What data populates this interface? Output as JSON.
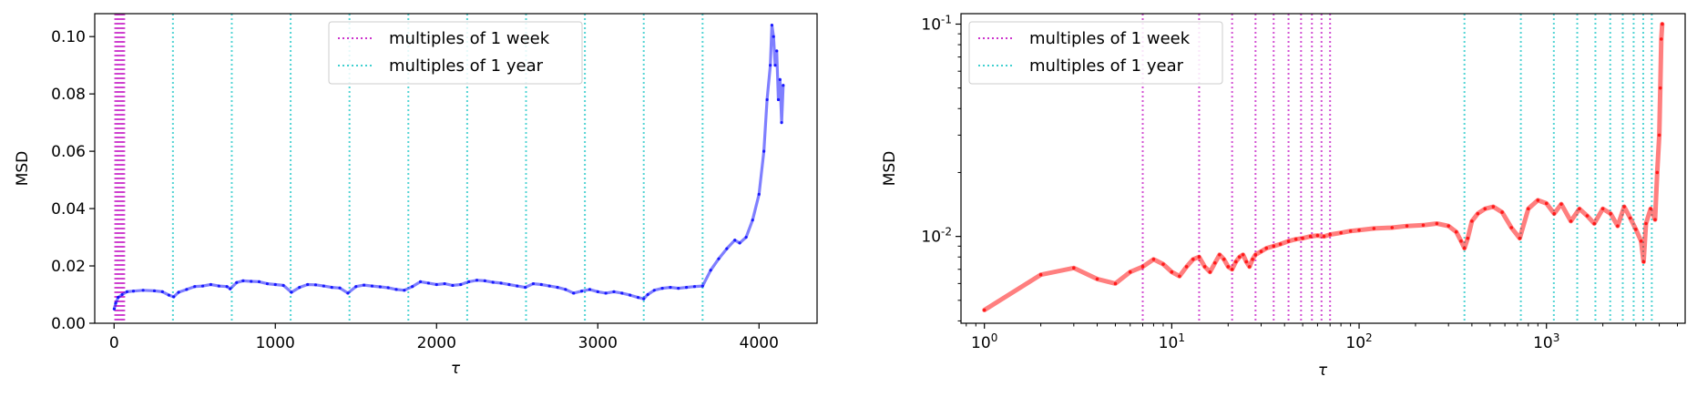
{
  "chart_data": [
    {
      "type": "line",
      "xlabel": "τ",
      "ylabel": "MSD",
      "xlim": [
        -120,
        4360
      ],
      "ylim": [
        0.0,
        0.108
      ],
      "x_ticks": [
        0,
        1000,
        2000,
        3000,
        4000
      ],
      "x_tick_labels": [
        "0",
        "1000",
        "2000",
        "3000",
        "4000"
      ],
      "y_ticks": [
        0.0,
        0.02,
        0.04,
        0.06,
        0.08,
        0.1
      ],
      "y_tick_labels": [
        "0.00",
        "0.02",
        "0.04",
        "0.06",
        "0.08",
        "0.10"
      ],
      "grid": false,
      "legend_position": "top-center",
      "legend": [
        "multiples of 1 week",
        "multiples of 1 year"
      ],
      "week_color": "#cc33cc",
      "year_color": "#40d0d0",
      "week_lines_x": [
        7,
        14,
        21,
        28,
        35,
        42,
        49,
        56,
        63
      ],
      "year_lines_x": [
        365,
        730,
        1095,
        1460,
        1825,
        2190,
        2555,
        2920,
        3285,
        3650
      ],
      "series": [
        {
          "color": "#0000ff",
          "x": [
            1,
            10,
            25,
            50,
            80,
            120,
            180,
            250,
            300,
            340,
            370,
            400,
            450,
            500,
            550,
            600,
            650,
            700,
            720,
            760,
            800,
            850,
            900,
            950,
            1000,
            1050,
            1100,
            1150,
            1200,
            1250,
            1300,
            1350,
            1400,
            1450,
            1500,
            1550,
            1600,
            1650,
            1700,
            1750,
            1800,
            1850,
            1900,
            1950,
            2000,
            2050,
            2100,
            2150,
            2200,
            2250,
            2300,
            2350,
            2400,
            2450,
            2500,
            2550,
            2600,
            2650,
            2700,
            2750,
            2800,
            2850,
            2900,
            2950,
            3000,
            3050,
            3100,
            3150,
            3200,
            3250,
            3285,
            3310,
            3350,
            3400,
            3450,
            3500,
            3550,
            3600,
            3650,
            3700,
            3750,
            3800,
            3850,
            3880,
            3920,
            3960,
            4000,
            4030,
            4050,
            4070,
            4080,
            4090,
            4100,
            4110,
            4120,
            4130,
            4140,
            4150
          ],
          "y": [
            0.005,
            0.007,
            0.009,
            0.01,
            0.011,
            0.0112,
            0.0115,
            0.0113,
            0.011,
            0.0098,
            0.0092,
            0.0108,
            0.0118,
            0.0128,
            0.013,
            0.0135,
            0.013,
            0.0128,
            0.012,
            0.0142,
            0.0148,
            0.0146,
            0.0145,
            0.0138,
            0.0135,
            0.0132,
            0.0108,
            0.0125,
            0.0135,
            0.0134,
            0.013,
            0.0125,
            0.0123,
            0.0105,
            0.0128,
            0.0133,
            0.013,
            0.0127,
            0.0124,
            0.0118,
            0.0115,
            0.0128,
            0.0145,
            0.014,
            0.0135,
            0.0138,
            0.0132,
            0.0135,
            0.0145,
            0.015,
            0.0148,
            0.0143,
            0.014,
            0.0135,
            0.013,
            0.0125,
            0.0138,
            0.0135,
            0.013,
            0.0125,
            0.0118,
            0.0105,
            0.0112,
            0.0118,
            0.011,
            0.0105,
            0.011,
            0.0105,
            0.0098,
            0.009,
            0.0085,
            0.01,
            0.0115,
            0.0122,
            0.0125,
            0.0122,
            0.0125,
            0.0128,
            0.013,
            0.0185,
            0.0225,
            0.026,
            0.029,
            0.028,
            0.03,
            0.036,
            0.045,
            0.06,
            0.078,
            0.09,
            0.104,
            0.1,
            0.09,
            0.095,
            0.078,
            0.085,
            0.07,
            0.083
          ]
        }
      ]
    },
    {
      "type": "line",
      "xscale": "log",
      "yscale": "log",
      "xlabel": "τ",
      "ylabel": "MSD",
      "xlim": [
        0.75,
        5500
      ],
      "ylim": [
        0.0039,
        0.112
      ],
      "x_ticks": [
        1,
        10,
        100,
        1000
      ],
      "x_tick_labels": [
        "10^0",
        "10^1",
        "10^2",
        "10^3"
      ],
      "y_ticks": [
        0.01,
        0.1
      ],
      "y_tick_labels": [
        "10^-2",
        "10^-1"
      ],
      "grid": false,
      "legend_position": "top-left",
      "legend": [
        "multiples of 1 week",
        "multiples of 1 year"
      ],
      "week_color": "#cc33cc",
      "year_color": "#40d0d0",
      "week_lines_x": [
        7,
        14,
        21,
        28,
        35,
        42,
        49,
        56,
        63,
        70
      ],
      "year_lines_x": [
        365,
        730,
        1095,
        1460,
        1825,
        2190,
        2555,
        2920,
        3285,
        3650
      ],
      "series": [
        {
          "color": "#ff0000",
          "x": [
            1,
            2,
            3,
            4,
            5,
            6,
            7,
            8,
            9,
            10,
            11,
            12,
            13,
            14,
            15,
            16,
            17,
            18,
            19,
            20,
            21,
            22,
            23,
            24,
            25,
            26,
            27,
            28,
            30,
            32,
            35,
            38,
            42,
            46,
            50,
            55,
            60,
            65,
            70,
            80,
            90,
            100,
            120,
            150,
            180,
            220,
            260,
            300,
            330,
            350,
            365,
            380,
            400,
            430,
            470,
            520,
            580,
            650,
            720,
            800,
            900,
            1000,
            1100,
            1200,
            1350,
            1500,
            1650,
            1800,
            2000,
            2200,
            2400,
            2600,
            2800,
            3000,
            3200,
            3300,
            3400,
            3600,
            3800,
            3900,
            4000,
            4050,
            4100,
            4150
          ],
          "y": [
            0.0045,
            0.0066,
            0.0071,
            0.0063,
            0.006,
            0.0068,
            0.0072,
            0.0078,
            0.0074,
            0.0068,
            0.0065,
            0.0072,
            0.0078,
            0.008,
            0.0072,
            0.0068,
            0.0075,
            0.0082,
            0.0078,
            0.0072,
            0.007,
            0.0076,
            0.008,
            0.0082,
            0.0076,
            0.0072,
            0.0078,
            0.0082,
            0.0085,
            0.0088,
            0.009,
            0.0092,
            0.0095,
            0.0097,
            0.0098,
            0.01,
            0.0101,
            0.01,
            0.0102,
            0.0104,
            0.0106,
            0.0107,
            0.0109,
            0.011,
            0.0112,
            0.0113,
            0.0115,
            0.0112,
            0.0105,
            0.0095,
            0.0088,
            0.0098,
            0.0118,
            0.0128,
            0.0135,
            0.0138,
            0.013,
            0.011,
            0.0098,
            0.0135,
            0.0148,
            0.0143,
            0.0128,
            0.0142,
            0.0118,
            0.0135,
            0.0125,
            0.0115,
            0.0135,
            0.0128,
            0.0112,
            0.0138,
            0.0122,
            0.0108,
            0.0095,
            0.0076,
            0.0115,
            0.0135,
            0.012,
            0.02,
            0.03,
            0.05,
            0.085,
            0.1
          ]
        }
      ]
    }
  ]
}
